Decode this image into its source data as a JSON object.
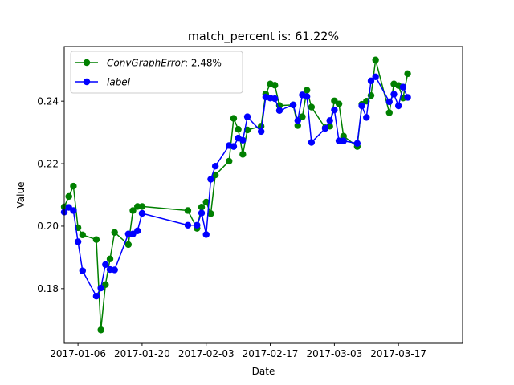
{
  "chart_data": {
    "type": "line",
    "title": "match_percent is: 61.22%",
    "xlabel": "Date",
    "ylabel": "Value",
    "x_axis": {
      "type": "date",
      "range": [
        "2017-01-03",
        "2017-03-31"
      ],
      "ticks": [
        "2017-01-06",
        "2017-01-20",
        "2017-02-03",
        "2017-02-17",
        "2017-03-03",
        "2017-03-17"
      ]
    },
    "y_axis": {
      "range": [
        0.1625,
        0.2575
      ],
      "ticks": [
        0.18,
        0.2,
        0.22,
        0.24
      ],
      "tick_labels": [
        "0.18",
        "0.20",
        "0.22",
        "0.24"
      ]
    },
    "grid": false,
    "legend": {
      "placement": "top-left"
    },
    "series": [
      {
        "name": "ConvGraphError: 2.48%",
        "legend_label": {
          "math": "ConvGraphError",
          "rest": ": 2.48%"
        },
        "color": "#008000",
        "marker": "circle",
        "points": [
          [
            "2017-01-03",
            0.2062
          ],
          [
            "2017-01-04",
            0.2095
          ],
          [
            "2017-01-05",
            0.2128
          ],
          [
            "2017-01-06",
            0.1995
          ],
          [
            "2017-01-07",
            0.1972
          ],
          [
            "2017-01-10",
            0.1957
          ],
          [
            "2017-01-11",
            0.1668
          ],
          [
            "2017-01-12",
            0.1813
          ],
          [
            "2017-01-13",
            0.1895
          ],
          [
            "2017-01-14",
            0.198
          ],
          [
            "2017-01-17",
            0.1941
          ],
          [
            "2017-01-18",
            0.205
          ],
          [
            "2017-01-19",
            0.2063
          ],
          [
            "2017-01-20",
            0.2063
          ],
          [
            "2017-01-30",
            0.205
          ],
          [
            "2017-02-01",
            0.1993
          ],
          [
            "2017-02-02",
            0.2061
          ],
          [
            "2017-02-03",
            0.2077
          ],
          [
            "2017-02-04",
            0.204
          ],
          [
            "2017-02-05",
            0.2164
          ],
          [
            "2017-02-08",
            0.2208
          ],
          [
            "2017-02-09",
            0.2345
          ],
          [
            "2017-02-10",
            0.231
          ],
          [
            "2017-02-11",
            0.223
          ],
          [
            "2017-02-12",
            0.2308
          ],
          [
            "2017-02-15",
            0.232
          ],
          [
            "2017-02-16",
            0.2423
          ],
          [
            "2017-02-17",
            0.2455
          ],
          [
            "2017-02-18",
            0.2451
          ],
          [
            "2017-02-19",
            0.2386
          ],
          [
            "2017-02-22",
            0.2388
          ],
          [
            "2017-02-23",
            0.2322
          ],
          [
            "2017-02-24",
            0.235
          ],
          [
            "2017-02-25",
            0.2435
          ],
          [
            "2017-02-26",
            0.2381
          ],
          [
            "2017-03-01",
            0.2315
          ],
          [
            "2017-03-02",
            0.232
          ],
          [
            "2017-03-03",
            0.2401
          ],
          [
            "2017-03-04",
            0.2391
          ],
          [
            "2017-03-05",
            0.2288
          ],
          [
            "2017-03-08",
            0.2255
          ],
          [
            "2017-03-09",
            0.239
          ],
          [
            "2017-03-10",
            0.24
          ],
          [
            "2017-03-11",
            0.2418
          ],
          [
            "2017-03-12",
            0.2532
          ],
          [
            "2017-03-15",
            0.2363
          ],
          [
            "2017-03-16",
            0.2455
          ],
          [
            "2017-03-17",
            0.245
          ],
          [
            "2017-03-18",
            0.241
          ],
          [
            "2017-03-19",
            0.2488
          ]
        ]
      },
      {
        "name": "label",
        "legend_label": {
          "math": "label",
          "rest": ""
        },
        "color": "#0000ff",
        "marker": "circle",
        "points": [
          [
            "2017-01-03",
            0.2045
          ],
          [
            "2017-01-04",
            0.206
          ],
          [
            "2017-01-05",
            0.205
          ],
          [
            "2017-01-06",
            0.195
          ],
          [
            "2017-01-07",
            0.1857
          ],
          [
            "2017-01-10",
            0.1776
          ],
          [
            "2017-01-11",
            0.1802
          ],
          [
            "2017-01-12",
            0.1877
          ],
          [
            "2017-01-13",
            0.1861
          ],
          [
            "2017-01-14",
            0.186
          ],
          [
            "2017-01-17",
            0.1975
          ],
          [
            "2017-01-18",
            0.1975
          ],
          [
            "2017-01-19",
            0.1985
          ],
          [
            "2017-01-20",
            0.2041
          ],
          [
            "2017-01-30",
            0.2003
          ],
          [
            "2017-02-01",
            0.2003
          ],
          [
            "2017-02-02",
            0.2042
          ],
          [
            "2017-02-03",
            0.1973
          ],
          [
            "2017-02-04",
            0.215
          ],
          [
            "2017-02-05",
            0.2192
          ],
          [
            "2017-02-08",
            0.2258
          ],
          [
            "2017-02-09",
            0.2255
          ],
          [
            "2017-02-10",
            0.2282
          ],
          [
            "2017-02-11",
            0.2275
          ],
          [
            "2017-02-12",
            0.235
          ],
          [
            "2017-02-15",
            0.2303
          ],
          [
            "2017-02-16",
            0.2413
          ],
          [
            "2017-02-17",
            0.241
          ],
          [
            "2017-02-18",
            0.2408
          ],
          [
            "2017-02-19",
            0.237
          ],
          [
            "2017-02-22",
            0.2388
          ],
          [
            "2017-02-23",
            0.2338
          ],
          [
            "2017-02-24",
            0.242
          ],
          [
            "2017-02-25",
            0.2415
          ],
          [
            "2017-02-26",
            0.2268
          ],
          [
            "2017-03-01",
            0.2313
          ],
          [
            "2017-03-02",
            0.2338
          ],
          [
            "2017-03-03",
            0.2372
          ],
          [
            "2017-03-04",
            0.2273
          ],
          [
            "2017-03-05",
            0.2273
          ],
          [
            "2017-03-08",
            0.2265
          ],
          [
            "2017-03-09",
            0.2385
          ],
          [
            "2017-03-10",
            0.2348
          ],
          [
            "2017-03-11",
            0.2465
          ],
          [
            "2017-03-12",
            0.2478
          ],
          [
            "2017-03-15",
            0.2398
          ],
          [
            "2017-03-16",
            0.2422
          ],
          [
            "2017-03-17",
            0.2385
          ],
          [
            "2017-03-18",
            0.2445
          ],
          [
            "2017-03-19",
            0.2412
          ]
        ]
      }
    ]
  }
}
